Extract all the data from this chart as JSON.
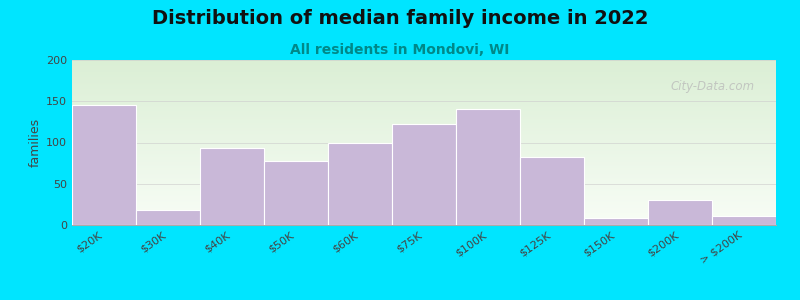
{
  "title": "Distribution of median family income in 2022",
  "subtitle": "All residents in Mondovi, WI",
  "ylabel": "families",
  "categories": [
    "$20K",
    "$30K",
    "$40K",
    "$50K",
    "$60K",
    "$75K",
    "$100K",
    "$125K",
    "$150K",
    "$200K",
    "> $200K"
  ],
  "values": [
    145,
    18,
    93,
    77,
    100,
    122,
    140,
    82,
    9,
    30,
    11
  ],
  "bar_color": "#c9b8d8",
  "bar_edgecolor": "#ffffff",
  "ylim": [
    0,
    200
  ],
  "yticks": [
    0,
    50,
    100,
    150,
    200
  ],
  "background_color": "#00e5ff",
  "plot_bg_color_top_left": "#dbefd5",
  "plot_bg_color_bottom_right": "#f5f9f2",
  "title_fontsize": 14,
  "subtitle_fontsize": 10,
  "watermark_text": "City-Data.com",
  "grid_color": "#cccccc",
  "grid_alpha": 0.6,
  "tick_fontsize": 8,
  "ylabel_fontsize": 9
}
